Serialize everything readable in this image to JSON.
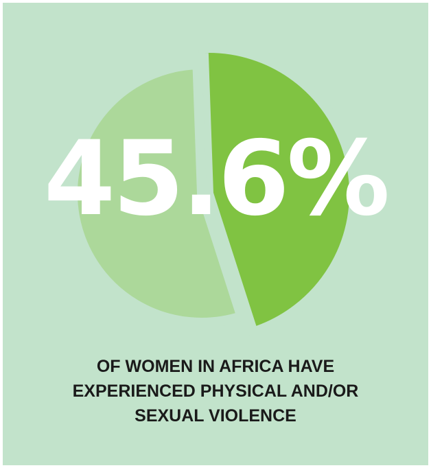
{
  "chart_data": {
    "type": "pie",
    "title": "",
    "slices": [
      {
        "label": "",
        "value": 45.6,
        "color": "#80c342"
      },
      {
        "label": "",
        "value": 54.4,
        "color": "#acd89a"
      }
    ]
  },
  "headline": {
    "value_text": "45.6%"
  },
  "caption": {
    "lines": [
      "OF WOMEN IN AFRICA HAVE",
      "EXPERIENCED PHYSICAL AND/OR",
      "SEXUAL VIOLENCE"
    ]
  },
  "colors": {
    "background": "#c2e3cb",
    "highlight_slice": "#80c342",
    "remaining_slice": "#acd89a",
    "value_text": "#ffffff",
    "caption_text": "#1a1a1a"
  }
}
